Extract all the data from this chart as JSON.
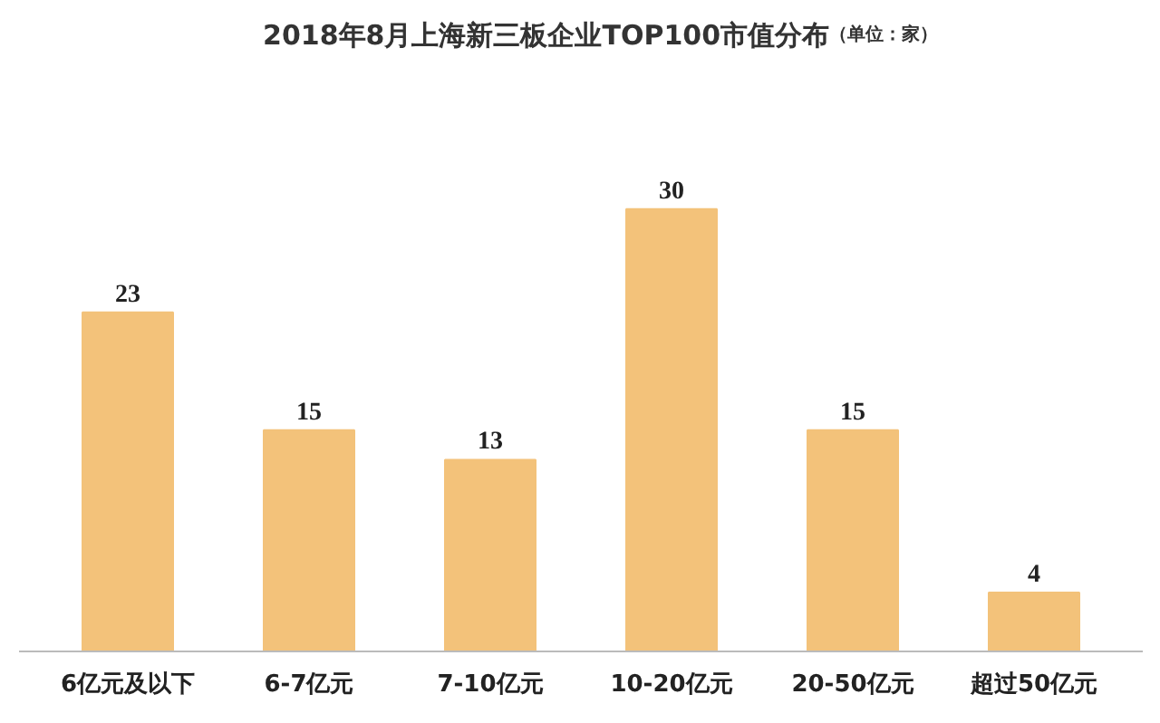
{
  "chart_data": {
    "type": "bar",
    "title": "2018年8月上海新三板企业TOP100市值分布",
    "subtitle": "（单位：家）",
    "categories": [
      "6亿元及以下",
      "6-7亿元",
      "7-10亿元",
      "10-20亿元",
      "20-50亿元",
      "超过50亿元"
    ],
    "values": [
      23,
      15,
      13,
      30,
      15,
      4
    ],
    "color": "#f3c27a",
    "data_labels": true,
    "grid": false
  }
}
